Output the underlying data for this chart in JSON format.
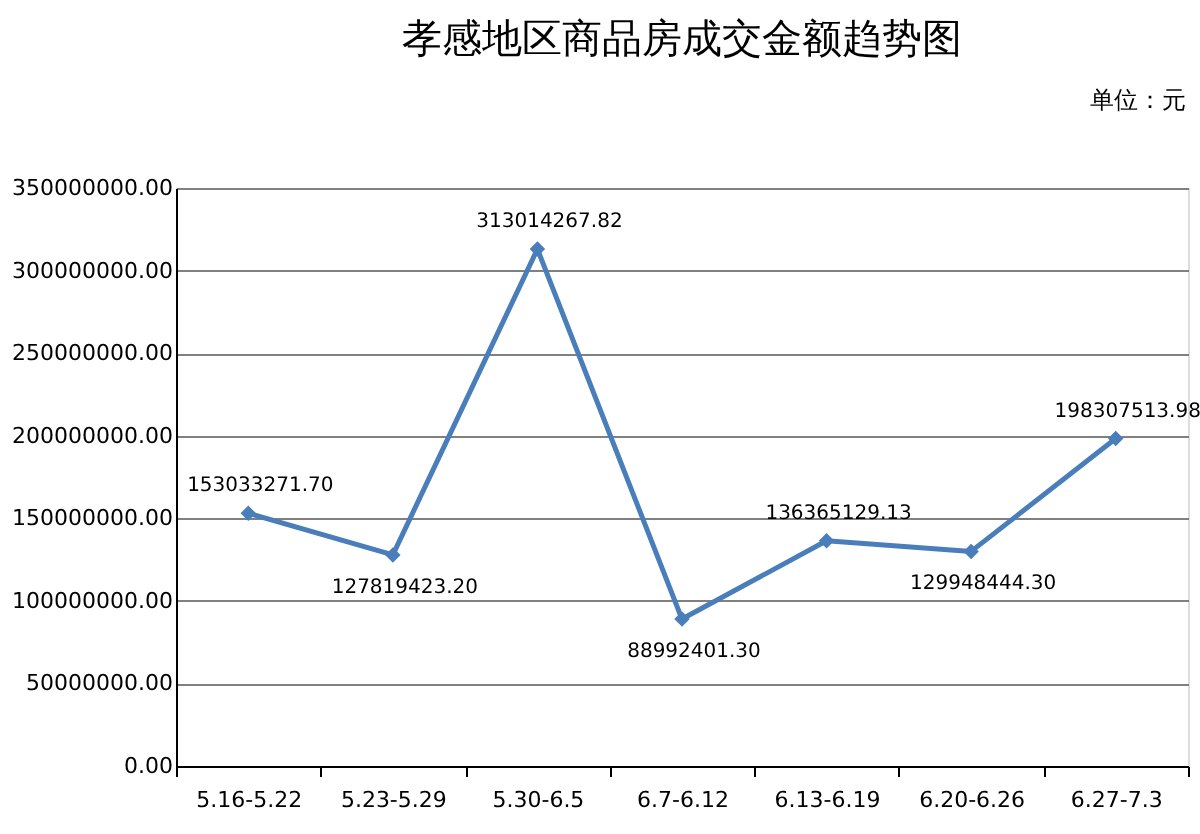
{
  "chart_data": {
    "type": "line",
    "title": "孝感地区商品房成交金额趋势图",
    "annotations": [
      "单位：元"
    ],
    "categories": [
      "5.16-5.22",
      "5.23-5.29",
      "5.30-6.5",
      "6.7-6.12",
      "6.13-6.19",
      "6.20-6.26",
      "6.27-7.3"
    ],
    "series": [
      {
        "color": "#4a7ebb",
        "values": [
          153033271.7,
          127819423.2,
          313014267.82,
          88992401.3,
          136365129.13,
          129948444.3,
          198307513.98
        ]
      }
    ],
    "value_labels": [
      "153033271.70",
      "127819423.20",
      "313014267.82",
      "88992401.30",
      "136365129.13",
      "129948444.30",
      "198307513.98"
    ],
    "ylim": [
      0,
      350000000
    ],
    "yticks": [
      {
        "value": 0,
        "label": "0.00"
      },
      {
        "value": 50000000,
        "label": "50000000.00"
      },
      {
        "value": 100000000,
        "label": "100000000.00"
      },
      {
        "value": 150000000,
        "label": "150000000.00"
      },
      {
        "value": 200000000,
        "label": "200000000.00"
      },
      {
        "value": 250000000,
        "label": "250000000.00"
      },
      {
        "value": 300000000,
        "label": "300000000.00"
      },
      {
        "value": 350000000,
        "label": "350000000.00"
      }
    ],
    "grid": "y",
    "marker": "diamond",
    "line_style": "solid"
  }
}
